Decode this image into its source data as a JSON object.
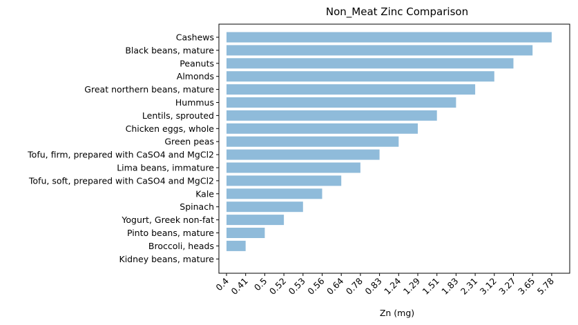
{
  "chart_data": {
    "type": "bar",
    "orientation": "horizontal",
    "title": "Non_Meat Zinc Comparison",
    "xlabel": "Zn (mg)",
    "ylabel": "",
    "x_axis_scale": "categorical",
    "x_tick_labels": [
      "0.4",
      "0.41",
      "0.5",
      "0.52",
      "0.53",
      "0.56",
      "0.64",
      "0.78",
      "0.83",
      "1.24",
      "1.29",
      "1.51",
      "1.83",
      "2.31",
      "3.12",
      "3.27",
      "3.65",
      "5.78"
    ],
    "categories": [
      "Cashews",
      "Black beans, mature",
      "Peanuts",
      "Almonds",
      "Great northern beans, mature",
      "Hummus",
      "Lentils, sprouted",
      "Chicken eggs, whole",
      "Green peas",
      "Tofu, firm, prepared with CaSO4 and MgCl2",
      "Lima beans, immature",
      "Tofu, soft, prepared with CaSO4 and MgCl2",
      "Kale",
      "Spinach",
      "Yogurt, Greek non-fat",
      "Pinto beans, mature",
      "Broccoli, heads",
      "Kidney beans, mature"
    ],
    "values": [
      5.78,
      3.65,
      3.27,
      3.12,
      2.31,
      1.83,
      1.51,
      1.29,
      1.24,
      0.83,
      0.78,
      0.64,
      0.56,
      0.53,
      0.52,
      0.5,
      0.41,
      0.4
    ],
    "color": "#8fbbda",
    "grid": false,
    "legend": "none"
  }
}
